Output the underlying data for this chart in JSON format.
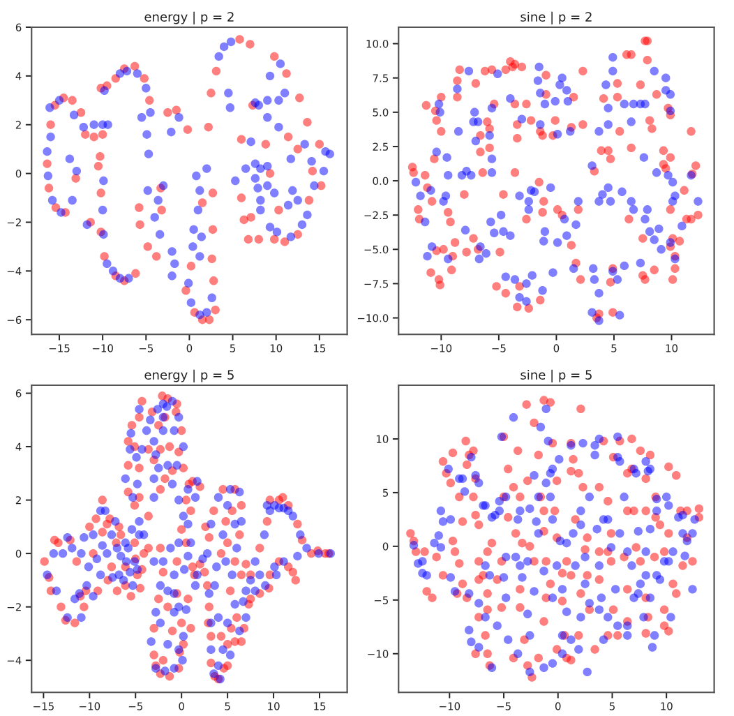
{
  "chart_data": [
    {
      "type": "scatter",
      "title": "energy | p = 2",
      "marker": "circle",
      "xlim": [
        -18.2,
        18.2
      ],
      "ylim": [
        -6.6,
        6.0
      ],
      "xticks": [
        -15,
        -10,
        -5,
        0,
        5,
        10,
        15
      ],
      "yticks": [
        -6,
        -4,
        -2,
        0,
        2,
        4,
        6
      ],
      "series": [
        {
          "color": "#ff0000",
          "x": [
            -16.4,
            -16.2,
            -15.4,
            -14.3,
            -16,
            -15.5,
            -14.5,
            -13.5,
            -12.5,
            -12,
            -11,
            -10,
            -10.2,
            -9.5,
            -8.5,
            -7.5,
            -6.3,
            -5.2,
            -4.6,
            -10.3,
            -10.2,
            -10.2,
            -9.8,
            -8.5,
            -7.5,
            -6.2,
            -5.8,
            -5.7,
            -4.8,
            -3.8,
            -3.2,
            -3.3,
            -2.5,
            -1.5,
            -0.2,
            1.5,
            2.7,
            2.2,
            2.5,
            2.7,
            2.8,
            2.6,
            0.2,
            -0.4,
            0.6,
            1.5,
            2.3,
            3.0,
            3.1,
            5.8,
            7.0,
            9.8,
            11.2,
            12.7,
            13.6,
            15.0,
            15.2,
            13.8,
            12.5,
            11.0,
            9.8,
            8.0,
            6.8,
            6.3,
            6.0,
            6.0,
            7.3,
            8.8,
            9.3,
            11.4,
            12.5,
            14.2,
            10.3,
            7.1,
            -10.5,
            -13.1,
            -11.4
          ],
          "values": [
            0.4,
            -0.6,
            -1.4,
            -1.6,
            2.0,
            2.8,
            3.1,
            3.0,
            2.5,
            1.6,
            1.5,
            1.6,
            3.5,
            3.6,
            3.9,
            4.3,
            4.4,
            3.9,
            3.0,
            0.7,
            -0.8,
            -2.4,
            -3.4,
            -4.2,
            -4.4,
            -4.1,
            -1.4,
            -2.1,
            -3.0,
            -3.4,
            -1.5,
            -0.6,
            2.5,
            2.6,
            1.8,
            -1.2,
            -0.8,
            1.9,
            3.3,
            -2.3,
            -4.4,
            -3.5,
            -3.8,
            -4.8,
            -5.7,
            -6.0,
            -6.0,
            -5.6,
            4.2,
            5.5,
            5.3,
            4.8,
            4.1,
            3.1,
            2.1,
            1.2,
            -0.5,
            -1.1,
            -2.5,
            -2.8,
            -2.7,
            -2.7,
            -2.7,
            -1.9,
            -1.0,
            1.4,
            2.8,
            1.2,
            0.0,
            1.5,
            1.0,
            0.1,
            -1.5,
            -1.8,
            0.3,
            -0.2,
            -2.0
          ]
        },
        {
          "color": "#0000ff",
          "x": [
            -16.4,
            -16.3,
            -15.8,
            -14.8,
            -16.0,
            -16.1,
            -15.0,
            -13.3,
            -12.2,
            -11.0,
            -10.0,
            -9.4,
            -9.8,
            -8.0,
            -7.2,
            -6.0,
            -5.0,
            -4.5,
            -9.9,
            -10.0,
            -9.9,
            -9.5,
            -8.8,
            -8.0,
            -7.0,
            -13.8,
            -13.5,
            -13.0,
            -11.8,
            -5.5,
            -4.9,
            -4.7,
            -4.8,
            -4.0,
            -3.4,
            -3.6,
            -3.0,
            -2.0,
            -1.7,
            -2.0,
            -1.2,
            -2.1,
            0.8,
            1.2,
            1.0,
            0.5,
            0.4,
            -0.1,
            0.2,
            1.2,
            2.0,
            2.6,
            1.4,
            1.2,
            2.0,
            3.4,
            4.0,
            4.8,
            4.5,
            4.7,
            9.3,
            10.5,
            11.0,
            10.3,
            9.0,
            8.0,
            7.6,
            9.0,
            10.3,
            13.3,
            14.1,
            15.7,
            16.2,
            15.5,
            14.4,
            13.6,
            13.0,
            11.7,
            10.1,
            9.3,
            8.2,
            7.9,
            8.2,
            9.0,
            7.6,
            6.5,
            5.3,
            7.6,
            9.0,
            9.8,
            8.2,
            11.9,
            12.5,
            11.4,
            11.7,
            7.1
          ],
          "values": [
            0.9,
            -0.1,
            -1.1,
            -1.6,
            1.5,
            2.7,
            3.0,
            2.4,
            1.9,
            2.0,
            2.0,
            2.0,
            3.4,
            4.1,
            4.2,
            4.1,
            3.5,
            2.5,
            -0.3,
            -1.5,
            -2.5,
            -3.7,
            -4.0,
            -4.3,
            -4.3,
            0.6,
            -1.1,
            0.1,
            -2.1,
            2.3,
            1.6,
            0.8,
            -0.7,
            -1.8,
            -2.5,
            -1.1,
            -0.5,
            -3.2,
            -3.7,
            -4.2,
            2.3,
            1.7,
            -0.1,
            -0.7,
            -1.5,
            -2.3,
            -3.0,
            -4.5,
            -5.3,
            -5.8,
            -5.7,
            -5.1,
            -2.6,
            -3.4,
            0.2,
            4.8,
            5.2,
            5.4,
            3.3,
            2.7,
            4.0,
            4.5,
            3.3,
            3.0,
            3.0,
            2.8,
            2.9,
            2.3,
            1.9,
            1.2,
            0.5,
            0.9,
            0.8,
            0.1,
            -0.5,
            -1.7,
            -2.1,
            -2.6,
            -2.4,
            -2.2,
            -1.5,
            -0.6,
            0.2,
            0.3,
            0.4,
            0.2,
            -0.3,
            -0.2,
            -0.5,
            -0.8,
            -1.1,
            -0.7,
            -1.1,
            -1.3,
            0.6,
            1.3
          ]
        }
      ]
    },
    {
      "type": "scatter",
      "title": "sine | p = 2",
      "marker": "circle",
      "xlim": [
        -13.7,
        13.7
      ],
      "ylim": [
        -11.2,
        11.2
      ],
      "xticks": [
        -10,
        -5,
        0,
        5,
        10
      ],
      "yticks": [
        {
          "value": -10,
          "label": "−10.0"
        },
        {
          "value": -7.5,
          "label": "−7.5"
        },
        {
          "value": -5,
          "label": "−5.0"
        },
        {
          "value": -2.5,
          "label": "−2.5"
        },
        {
          "value": 0,
          "label": "0.0"
        },
        {
          "value": 2.5,
          "label": "2.5"
        },
        {
          "value": 5,
          "label": "5.0"
        },
        {
          "value": 7.5,
          "label": "7.5"
        },
        {
          "value": 10,
          "label": "10.0"
        }
      ],
      "series": [
        {
          "color": "#ff0000",
          "x": [
            -12.5,
            -12.4,
            -12.0,
            -11.9,
            -11.3,
            -11.4,
            -11.2,
            -10.8,
            -10.5,
            -10.4,
            -10.0,
            -10.0,
            -10.6,
            -10.9,
            -10.2,
            -10.1,
            -10.4,
            -9.8,
            -9.4,
            -9.2,
            -9.0,
            -9.1,
            -8.8,
            -8.4,
            -8.6,
            -8.6,
            -8.0,
            -7.8,
            -7.2,
            -6.8,
            -7.0,
            -6.6,
            -6.6,
            -6.4,
            -6.2,
            -6.0,
            -5.8,
            -5.8,
            -5.6,
            -5.4,
            -4.9,
            -5.2,
            -4.4,
            -4.4,
            -4.0,
            -3.8,
            -3.6,
            -3.6,
            -3.4,
            -3.4,
            -3.6,
            -4.6,
            -3.0,
            -3.2,
            -3.4,
            -2.4,
            -2.6,
            -2.2,
            -2.6,
            -1.4,
            -1.2,
            -1.4,
            -1.5,
            -1.1,
            -1.2,
            -0.9,
            -0.9,
            -0.3,
            -0.1,
            0.1,
            0.5,
            1.3,
            1.5,
            1.3,
            2.3,
            2.3,
            1.9,
            1.7,
            2.1,
            3.5,
            3.7,
            3.3,
            3.9,
            4.1,
            4.5,
            4.7,
            4.7,
            4.9,
            4.9,
            5.3,
            5.5,
            5.3,
            6.1,
            6.5,
            6.5,
            6.3,
            7.7,
            7.9,
            7.9,
            7.3,
            7.5,
            7.5,
            7.7,
            8.1,
            8.3,
            8.5,
            8.7,
            9.3,
            9.3,
            9.5,
            9.9,
            9.9,
            9.7,
            9.9,
            10.1,
            9.9,
            10.1,
            10.3,
            10.3,
            10.7,
            11.1,
            11.3,
            11.7,
            11.7,
            12.1,
            12.3,
            11.8
          ],
          "values": [
            1.0,
            0.6,
            -2.1,
            -2.8,
            5.5,
            0.4,
            -0.5,
            -1.5,
            5.1,
            4.4,
            3.6,
            6.1,
            1.6,
            -6.7,
            -7.2,
            -7.6,
            -5.1,
            -5.0,
            -2.3,
            -3.0,
            -5.5,
            -6.5,
            -4.5,
            8.1,
            7.3,
            6.1,
            -1.0,
            -5.2,
            -4.2,
            -5.0,
            7.1,
            3.3,
            2.1,
            0.6,
            8.0,
            4.3,
            3.8,
            2.4,
            8.1,
            5.6,
            -5.2,
            -7.7,
            8.1,
            -8.2,
            8.7,
            8.3,
            8.5,
            5.6,
            3.1,
            4.1,
            0.6,
            -1.0,
            8.3,
            -7.7,
            -9.2,
            -9.3,
            5.6,
            4.4,
            -2.8,
            3.6,
            3.3,
            -8.7,
            -0.1,
            -1.5,
            -2.3,
            7.7,
            6.3,
            3.3,
            4.4,
            -2.1,
            -2.5,
            -4.7,
            6.1,
            3.9,
            4.1,
            8.0,
            -2.1,
            -6.0,
            -7.2,
            -10.0,
            -9.7,
            0.7,
            2.2,
            6.0,
            2.2,
            1.6,
            -7.4,
            -6.4,
            -9.6,
            7.1,
            3.6,
            6.1,
            9.2,
            9.2,
            2.4,
            -2.8,
            10.2,
            10.2,
            8.8,
            7.0,
            -4.2,
            -6.9,
            -7.2,
            4.4,
            3.8,
            -6.5,
            6.3,
            2.2,
            1.2,
            0.9,
            1.7,
            4.8,
            5.3,
            -2.1,
            -4.2,
            -4.8,
            -7.2,
            -6.4,
            -5.5,
            -4.4,
            -0.7,
            -2.8,
            3.6,
            -2.8,
            1.1,
            -2.5,
            0.5
          ]
        },
        {
          "color": "#0000ff",
          "x": [
            -12.2,
            -11.8,
            -11.4,
            -11.2,
            -10.8,
            -10.9,
            -10.4,
            -10.2,
            -10.1,
            -9.8,
            -9.5,
            -9.4,
            -9.6,
            -9.4,
            -8.6,
            -8.5,
            -8.2,
            -7.8,
            -7.9,
            -7.6,
            -7.4,
            -7.1,
            -7.2,
            -7.0,
            -6.8,
            -6.7,
            -6.6,
            -6.1,
            -5.8,
            -5.6,
            -5.6,
            -5.6,
            -5.7,
            -5.4,
            -5.1,
            -4.8,
            -4.6,
            -4.4,
            -4.0,
            -4.0,
            -3.6,
            -3.2,
            -3.2,
            -3.0,
            -2.6,
            -2.6,
            -2.4,
            -2.4,
            -2.2,
            -2.1,
            -1.9,
            -1.6,
            -1.5,
            -1.4,
            -1.4,
            -1.0,
            -1.1,
            -1.2,
            -1.0,
            -0.5,
            -0.3,
            -0.1,
            0.1,
            0.3,
            0.5,
            0.9,
            1.0,
            0.7,
            0.9,
            0.1,
            1.2,
            1.5,
            1.9,
            1.7,
            3.1,
            3.7,
            3.2,
            3.1,
            3.3,
            3.7,
            3.7,
            3.7,
            4.0,
            4.3,
            4.5,
            4.5,
            4.5,
            4.7,
            4.9,
            4.9,
            4.9,
            5.3,
            5.5,
            5.7,
            5.9,
            5.9,
            6.5,
            6.5,
            6.7,
            6.7,
            7.3,
            7.3,
            7.6,
            7.7,
            7.7,
            7.9,
            8.1,
            8.5,
            8.5,
            8.7,
            8.9,
            9.1,
            9.5,
            9.5,
            9.7,
            9.9,
            9.9,
            9.9,
            10.1,
            10.1,
            10.3,
            10.3,
            10.9,
            11.7,
            12.3
          ],
          "values": [
            -0.1,
            -1.1,
            -3.0,
            -5.5,
            -4.8,
            -0.7,
            2.1,
            5.6,
            5.0,
            -1.5,
            1.7,
            0.4,
            -1.1,
            -5.7,
            6.7,
            3.6,
            0.4,
            0.7,
            -3.6,
            8.0,
            0.4,
            5.0,
            4.3,
            2.9,
            4.3,
            -5.7,
            -4.8,
            -5.3,
            3.3,
            1.6,
            0.6,
            5.3,
            -3.0,
            -3.8,
            7.8,
            -2.5,
            -3.7,
            -7.0,
            6.0,
            -4.0,
            -7.2,
            -1.1,
            -8.5,
            4.5,
            -7.5,
            -8.8,
            -2.1,
            -1.5,
            -0.7,
            -6.9,
            -0.8,
            7.3,
            8.3,
            6.4,
            4.1,
            5.6,
            -4.4,
            -8.0,
            -3.7,
            -0.5,
            -6.7,
            5.8,
            3.4,
            7.0,
            7.5,
            6.6,
            5.8,
            -2.8,
            -4.0,
            -4.5,
            3.6,
            -6.4,
            -1.5,
            -3.2,
            -9.6,
            -10.2,
            -6.4,
            1.1,
            -7.2,
            3.6,
            -8.2,
            -1.5,
            -1.0,
            7.0,
            5.3,
            4.1,
            -0.5,
            -1.5,
            9.0,
            -6.6,
            8.0,
            -7.2,
            -9.8,
            -0.8,
            -6.2,
            5.6,
            4.3,
            -1.5,
            -2.1,
            5.6,
            5.6,
            -6.0,
            1.7,
            5.6,
            -2.8,
            -2.1,
            -3.7,
            8.0,
            -4.3,
            0.6,
            -3.5,
            -5.0,
            7.5,
            6.6,
            0.4,
            -4.5,
            6.3,
            5.1,
            -0.1,
            -1.5,
            -1.1,
            -5.7,
            -3.3,
            0.4,
            -1.5
          ]
        }
      ]
    },
    {
      "type": "scatter",
      "title": "energy | p = 5",
      "marker": "circle",
      "xlim": [
        -16.3,
        18.0
      ],
      "ylim": [
        -5.2,
        6.3
      ],
      "xticks": [
        -15,
        -10,
        -5,
        0,
        5,
        10,
        15
      ],
      "yticks": [
        -4,
        -2,
        0,
        2,
        4,
        6
      ],
      "series": [
        {
          "color": "#ff0000",
          "x": [
            -14.9,
            -14.2,
            -13.4,
            -12.1,
            -11.4,
            -13.1,
            -11.6,
            -10.6,
            -10.4,
            -9.1,
            -9.3,
            -8.6,
            -8.1,
            -7.1,
            -6.1,
            -4.8,
            -6.1,
            -7.6,
            -6.6,
            -5.1,
            -4.1,
            -9.6,
            -5.8,
            -5.8,
            -5.8,
            -5.1,
            -4.6,
            -4.6,
            -4.6,
            -4.3,
            -3.6,
            -3.0,
            -2.3,
            -1.8,
            -1.5,
            -0.5,
            0.0,
            -0.3,
            -1.0,
            -1.3,
            -2.5,
            -2.3,
            0.2,
            -3.6,
            -3.6,
            -2.3,
            -2.0,
            -2.5,
            -3.0,
            -3.0,
            -2.3,
            -1.3,
            -0.3,
            0.2,
            0.0,
            -0.5,
            -0.5,
            0.0,
            0.5,
            1.2,
            2.0,
            1.0,
            0.5,
            1.2,
            2.0,
            0.7,
            1.0,
            -1.0,
            -2.0,
            -1.5,
            2.5,
            3.0,
            3.5,
            4.5,
            5.8,
            6.5,
            6.3,
            5.8,
            5.3,
            6.0,
            5.8,
            5.0,
            4.0,
            3.2,
            3.2,
            3.0,
            2.8,
            4.3,
            5.0,
            4.3,
            4.8,
            5.5,
            5.0,
            6.5,
            7.3,
            6.5,
            7.5,
            8.5,
            9.3,
            9.6,
            10.6,
            11.6,
            12.6,
            13.1,
            14.1,
            15.6,
            11.6,
            12.1,
            10.6,
            9.6,
            8.5,
            7.5,
            -8.0,
            -7.0,
            -5.5,
            -4.5,
            -8.6,
            -7.8,
            -6.8,
            -5.0,
            -4.3,
            -10.0,
            -11.0,
            -12.6,
            -14.4,
            -13.8,
            -5.4,
            -5.1,
            -3.2,
            -2.1,
            -0.6,
            -1.8,
            0.8,
            1.4,
            2.6,
            2.9,
            4.6,
            6.8,
            7.0,
            9.5,
            12.4,
            11.0,
            14.8,
            16.0,
            -0.2,
            -2.8,
            3.6,
            5.4
          ],
          "values": [
            -0.3,
            -1.4,
            0.4,
            0.5,
            -0.3,
            -2.0,
            -2.6,
            -2.0,
            -1.4,
            -1.4,
            1.3,
            2.0,
            1.1,
            0.4,
            -0.5,
            -0.8,
            -1.2,
            -0.5,
            0.7,
            0.4,
            0.0,
            0.0,
            4.2,
            3.3,
            2.3,
            1.8,
            2.1,
            3.2,
            5.1,
            5.7,
            3.9,
            3.5,
            3.9,
            5.1,
            5.8,
            5.6,
            4.6,
            3.8,
            3.1,
            4.0,
            4.8,
            2.4,
            3.2,
            1.4,
            0.2,
            0.2,
            -0.7,
            -1.7,
            -2.8,
            -3.8,
            -4.5,
            -4.6,
            -4.3,
            -3.4,
            -2.6,
            -1.5,
            -0.3,
            0.9,
            2.0,
            2.7,
            2.5,
            1.6,
            0.4,
            -0.5,
            -0.4,
            -1.7,
            -2.8,
            -2.9,
            -4.0,
            -2.0,
            -0.7,
            0.6,
            1.6,
            2.4,
            2.4,
            1.8,
            0.7,
            -0.3,
            -1.4,
            -2.4,
            -3.3,
            -4.2,
            -4.7,
            -4.1,
            -3.1,
            -2.0,
            -1.2,
            -3.1,
            -3.4,
            0.0,
            1.2,
            1.6,
            0.4,
            -0.8,
            -1.9,
            -3.3,
            -0.8,
            0.2,
            1.2,
            2.0,
            2.0,
            1.8,
            1.1,
            0.5,
            0.0,
            0.0,
            -0.5,
            -0.7,
            -0.3,
            -0.8,
            -1.5,
            -1.7,
            -1.0,
            -1.4,
            -1.6,
            -1.3,
            0.8,
            1.3,
            1.0,
            -0.2,
            -0.6,
            1.0,
            -1.6,
            -2.5,
            -0.9,
            0.5,
            4.8,
            4.0,
            5.3,
            5.9,
            5.3,
            2.8,
            2.6,
            -0.8,
            1.0,
            -2.6,
            -4.3,
            -2.8,
            -0.4,
            -1.3,
            -1.0,
            2.1,
            0.1,
            0.0,
            -3.7,
            -4.2,
            -4.6,
            -2.8
          ]
        },
        {
          "color": "#0000ff",
          "x": [
            -14.6,
            -13.6,
            -13.9,
            -12.9,
            -12.4,
            -11.9,
            -10.9,
            -10.6,
            -12.4,
            -10.9,
            -11.1,
            -9.6,
            -8.8,
            -9.6,
            -8.8,
            -8.3,
            -7.6,
            -6.6,
            -5.6,
            -5.1,
            -5.3,
            -6.8,
            -8.1,
            -6.1,
            -4.6,
            -8.6,
            -10.1,
            -5.6,
            -6.1,
            -5.3,
            -4.6,
            -4.8,
            -4.3,
            -4.6,
            -3.8,
            -3.0,
            -2.5,
            -2.0,
            -2.0,
            -1.0,
            -0.3,
            0.2,
            -0.5,
            -1.5,
            -0.8,
            -2.0,
            -3.0,
            -1.0,
            -3.0,
            -4.1,
            -3.0,
            -2.0,
            -2.3,
            -2.8,
            -3.3,
            -2.8,
            -1.8,
            -0.8,
            0.1,
            0.2,
            -0.3,
            -0.8,
            -0.3,
            0.2,
            0.7,
            1.7,
            1.5,
            0.7,
            0.7,
            1.7,
            1.5,
            0.5,
            -0.8,
            -1.5,
            -0.8,
            -2.3,
            -1.5,
            2.8,
            3.2,
            4.0,
            5.3,
            6.3,
            6.5,
            6.0,
            5.5,
            5.8,
            6.3,
            5.3,
            4.2,
            3.5,
            3.2,
            3.2,
            3.0,
            4.0,
            4.5,
            3.8,
            4.5,
            5.0,
            5.8,
            4.8,
            7.0,
            7.0,
            8.0,
            9.0,
            9.3,
            10.1,
            11.1,
            12.1,
            12.9,
            13.6,
            14.9,
            16.2,
            9.6,
            10.6,
            11.6,
            12.6,
            11.1,
            10.1,
            9.1,
            8.0,
            8.5,
            10.3,
            -7.5,
            -6.3,
            -6.0,
            -5.8,
            -7.0,
            -4.8,
            -5.4,
            -7.2,
            -9.2,
            -10.3,
            -11.6,
            -5.5,
            -4.9,
            -3.4,
            -2.6,
            -1.6,
            -2.8,
            -0.3,
            -1.2,
            0.3,
            1.0,
            2.3,
            3.6,
            4.0,
            5.0,
            6.7,
            7.5,
            -0.3
          ],
          "values": [
            -0.8,
            -1.4,
            0.0,
            0.0,
            0.6,
            0.2,
            0.0,
            0.6,
            -2.4,
            -2.4,
            -1.5,
            -1.6,
            -0.8,
            0.7,
            1.6,
            1.6,
            0.7,
            -0.1,
            -0.7,
            -0.3,
            -1.2,
            -0.8,
            0.0,
            0.4,
            0.7,
            0.3,
            -0.5,
            3.9,
            2.8,
            2.1,
            1.2,
            2.6,
            3.9,
            5.4,
            4.6,
            4.2,
            3.2,
            4.6,
            5.6,
            5.7,
            5.1,
            4.0,
            3.3,
            3.3,
            4.6,
            5.1,
            2.8,
            2.6,
            2.1,
            0.7,
            -0.3,
            -0.3,
            -1.2,
            -2.2,
            -3.3,
            -4.3,
            -4.4,
            -4.3,
            -4.0,
            -3.1,
            -2.0,
            -0.8,
            0.4,
            1.4,
            2.4,
            2.7,
            2.1,
            1.1,
            -0.1,
            -0.8,
            -1.2,
            -2.1,
            -2.2,
            -3.4,
            -1.5,
            -2.6,
            -1.4,
            0.0,
            1.1,
            2.1,
            2.4,
            2.3,
            1.2,
            0.2,
            -0.8,
            -1.9,
            -2.9,
            -3.8,
            -4.7,
            -4.5,
            -3.6,
            -2.6,
            -1.5,
            -2.4,
            -3.6,
            -0.5,
            0.7,
            1.8,
            1.1,
            -0.3,
            -1.4,
            -2.4,
            -0.3,
            0.7,
            1.8,
            1.8,
            1.7,
            1.4,
            0.7,
            0.2,
            0.0,
            0.0,
            1.6,
            1.7,
            1.6,
            -0.1,
            -0.3,
            -0.5,
            -1.2,
            -1.4,
            -0.8,
            -0.8,
            -0.9,
            -1.0,
            -0.3,
            0.2,
            0.2,
            -0.6,
            0.9,
            1.2,
            -0.2,
            -1.2,
            -1.7,
            4.5,
            3.6,
            5.0,
            5.4,
            5.5,
            3.7,
            2.0,
            0.2,
            -0.6,
            0.4,
            -0.2,
            -1.2,
            -4.2,
            -2.6,
            -1.8,
            -1.0,
            -3.6
          ]
        }
      ]
    },
    {
      "type": "scatter",
      "title": "sine | p = 5",
      "marker": "circle",
      "xlim": [
        -14.7,
        14.4
      ],
      "ylim": [
        -13.6,
        15.0
      ],
      "xticks": [
        -10,
        -5,
        0,
        5,
        10
      ],
      "yticks": [
        -10,
        -5,
        0,
        5,
        10
      ],
      "series": [
        {
          "color": "#ff0000",
          "x": [
            -13.6,
            -13.3,
            -13.1,
            -12.3,
            -12.1,
            -11.6,
            -10.6,
            -10.3,
            -9.9,
            -9.7,
            -9.5,
            -9.1,
            -8.8,
            -8.4,
            -8.5,
            -8.2,
            -7.8,
            -7.6,
            -7.8,
            -7.3,
            -7.3,
            -6.9,
            -6.5,
            -6.5,
            -6.7,
            -6.5,
            -6.3,
            -5.6,
            -5.2,
            -5.0,
            -5.0,
            -4.6,
            -4.6,
            -3.9,
            -4.1,
            -3.7,
            -3.5,
            -3.1,
            -2.8,
            -2.4,
            -2.6,
            -2.9,
            -2.2,
            -1.8,
            -1.6,
            -1.3,
            -1.1,
            -1.1,
            -1.3,
            -1.3,
            -0.7,
            -0.5,
            -0.3,
            -0.1,
            0.4,
            0.4,
            0.6,
            0.8,
            1.2,
            1.4,
            1.9,
            2.1,
            2.3,
            2.5,
            2.7,
            2.9,
            3.4,
            3.8,
            4.2,
            4.6,
            4.9,
            4.9,
            5.1,
            5.5,
            5.7,
            6.4,
            6.8,
            7.0,
            7.2,
            7.6,
            8.1,
            8.1,
            8.5,
            9.0,
            9.4,
            9.8,
            10.2,
            10.9,
            10.6,
            10.2,
            11.3,
            11.9,
            12.4,
            13.0,
            13.0,
            9.8,
            -8.4,
            -9.7,
            -9.1,
            -7.6,
            -8.8,
            -11.2,
            -10.6,
            -9.3,
            -7.3,
            -6.1,
            -6.5,
            -5.2,
            -7.3,
            -7.6,
            -4.1,
            -1.8,
            -0.1,
            1.2,
            1.9,
            4.6,
            6.4,
            8.3,
            9.8,
            10.9,
            11.5,
            8.9,
            6.4,
            3.8,
            2.1,
            1.2,
            2.7,
            1.6,
            6.4,
            8.1,
            9.0,
            10.2,
            11.9,
            8.1,
            7.6,
            6.8,
            5.1,
            3.8,
            1.2,
            -0.1,
            -2.8,
            -3.5,
            -1.3,
            -3.3,
            -2.2,
            -3.5,
            -0.7,
            0.8,
            4.6,
            6.1
          ],
          "values": [
            1.2,
            0.5,
            -0.5,
            -0.5,
            -4.2,
            -4.8,
            7.9,
            6.8,
            5.9,
            0.5,
            -0.5,
            -1.6,
            -3.5,
            -4.8,
            9.8,
            8.5,
            8.9,
            6.3,
            4.6,
            2.0,
            -1.4,
            -2.7,
            -4.4,
            -5.9,
            -8.3,
            -10.0,
            -11.1,
            -3.1,
            -1.4,
            4.6,
            10.2,
            7.2,
            2.7,
            1.2,
            5.5,
            8.9,
            -5.7,
            -8.7,
            -11.1,
            -12.2,
            0.0,
            13.2,
            11.5,
            8.5,
            4.6,
            1.4,
            -1.4,
            -4.8,
            -7.0,
            13.6,
            13.4,
            9.6,
            3.3,
            0.8,
            -2.5,
            -5.1,
            -8.3,
            -10.4,
            9.6,
            8.1,
            6.8,
            12.8,
            5.5,
            -0.3,
            -2.7,
            -5.9,
            -9.6,
            -0.5,
            9.8,
            4.2,
            1.2,
            -1.4,
            -5.9,
            -8.3,
            9.8,
            6.8,
            10.0,
            3.3,
            -0.1,
            -1.4,
            -4.8,
            -8.1,
            8.5,
            4.6,
            2.0,
            -0.5,
            7.4,
            6.6,
            -3.5,
            -7.9,
            3.3,
            0.8,
            -1.4,
            2.7,
            3.5,
            -5.9,
            7.6,
            8.7,
            4.6,
            2.9,
            2.3,
            -1.0,
            -2.7,
            -4.4,
            -3.1,
            0.3,
            -0.5,
            -5.7,
            -6.6,
            -10.0,
            -10.4,
            -10.4,
            -9.6,
            -10.6,
            -8.3,
            -8.3,
            -7.0,
            -6.6,
            -7.4,
            -4.4,
            -1.8,
            -1.0,
            -4.0,
            -3.1,
            -4.4,
            -2.7,
            0.8,
            2.5,
            3.3,
            3.3,
            2.7,
            1.2,
            3.3,
            6.3,
            8.9,
            7.2,
            8.3,
            5.5,
            7.0,
            6.1,
            6.1,
            4.6,
            3.3,
            0.3,
            -1.4,
            -4.0,
            -3.5,
            -1.4,
            -0.5,
            -1.0
          ]
        },
        {
          "color": "#0000ff",
          "x": [
            -13.3,
            -12.9,
            -12.5,
            -11.0,
            -10.8,
            -10.6,
            -10.1,
            -9.9,
            -9.5,
            -8.8,
            -8.6,
            -8.2,
            -8.0,
            -7.6,
            -7.3,
            -6.9,
            -6.7,
            -6.1,
            -5.8,
            -5.4,
            -5.2,
            -5.0,
            -4.8,
            -4.1,
            -3.9,
            -3.5,
            -3.5,
            -3.3,
            -2.8,
            -2.6,
            -2.6,
            -2.2,
            -2.0,
            -1.8,
            -1.6,
            -1.1,
            -0.9,
            -0.7,
            -0.5,
            -0.1,
            0.2,
            0.4,
            0.8,
            1.4,
            1.9,
            2.1,
            2.3,
            2.5,
            2.7,
            2.9,
            3.4,
            3.6,
            3.8,
            4.0,
            4.2,
            4.6,
            4.9,
            5.3,
            5.5,
            5.7,
            6.1,
            6.4,
            6.8,
            7.0,
            7.2,
            7.4,
            7.6,
            8.1,
            8.3,
            8.5,
            8.7,
            9.1,
            9.4,
            9.8,
            10.0,
            10.4,
            10.6,
            11.1,
            11.5,
            11.7,
            12.4,
            12.4,
            12.6,
            -9.9,
            -10.8,
            -11.4,
            -12.5,
            -12.1,
            -9.1,
            -8.0,
            -7.3,
            -6.7,
            -5.4,
            -6.1,
            -4.8,
            -3.7,
            -2.6,
            -2.2,
            -1.1,
            -0.5,
            0.1,
            1.2,
            3.4,
            3.8,
            5.5,
            7.0,
            8.5,
            9.1,
            10.2,
            11.5,
            11.9,
            10.2,
            9.1,
            8.1,
            7.4,
            7.9,
            8.9,
            6.4,
            5.5,
            4.6,
            3.8,
            2.9,
            2.1,
            1.2,
            0.4,
            -0.5,
            -1.3,
            -3.7,
            -4.6,
            -5.6,
            -6.7,
            -7.3,
            -8.2,
            -6.3,
            -4.8,
            -2.8,
            -1.3,
            0.4,
            1.6,
            2.5,
            0.8,
            2.1,
            4.2,
            5.7,
            6.4,
            8.1,
            8.5,
            -0.5,
            -0.7,
            -1.8
          ],
          "values": [
            0.1,
            -1.6,
            -2.5,
            1.0,
            3.3,
            2.3,
            7.2,
            -2.9,
            -4.2,
            6.3,
            5.1,
            -7.8,
            -8.9,
            6.6,
            -9.4,
            3.8,
            -1.8,
            -11.3,
            2.9,
            4.2,
            10.2,
            -2.9,
            -4.8,
            12.0,
            -1.0,
            3.3,
            -1.8,
            -2.9,
            -6.3,
            -8.3,
            -11.7,
            -4.2,
            2.3,
            4.6,
            11.1,
            12.8,
            9.8,
            6.8,
            -4.8,
            -1.8,
            0.5,
            -8.3,
            -6.1,
            1.2,
            -9.6,
            3.3,
            9.6,
            -3.5,
            -11.7,
            4.6,
            8.5,
            1.6,
            -1.8,
            -4.8,
            -8.7,
            2.5,
            -0.1,
            -4.0,
            10.2,
            7.9,
            4.6,
            -7.4,
            -1.8,
            -4.8,
            6.8,
            1.4,
            -3.5,
            7.9,
            7.0,
            -4.8,
            -9.4,
            3.3,
            -3.1,
            -1.4,
            4.6,
            -6.6,
            -0.5,
            2.7,
            1.2,
            -0.9,
            1.2,
            -4.0,
            2.5,
            2.5,
            -0.1,
            0.3,
            -1.4,
            -2.7,
            6.3,
            8.3,
            5.9,
            3.8,
            3.3,
            2.7,
            4.6,
            2.5,
            3.5,
            6.6,
            5.9,
            7.2,
            8.1,
            9.4,
            9.4,
            10.0,
            8.3,
            7.2,
            7.2,
            4.4,
            3.8,
            2.9,
            0.5,
            -1.4,
            -2.7,
            -2.7,
            -4.4,
            -6.6,
            -8.3,
            -8.3,
            -7.4,
            -6.6,
            -5.9,
            -5.3,
            -6.6,
            -8.7,
            -10.0,
            -10.9,
            -11.3,
            -10.0,
            -8.7,
            -7.4,
            -6.6,
            -5.3,
            -4.4,
            -2.7,
            -1.0,
            -1.4,
            -2.3,
            -4.0,
            -1.8,
            -1.0,
            0.3,
            2.0,
            2.5,
            1.2,
            -0.5,
            -0.5,
            1.6,
            2.5,
            4.6,
            1.2
          ]
        }
      ]
    }
  ]
}
